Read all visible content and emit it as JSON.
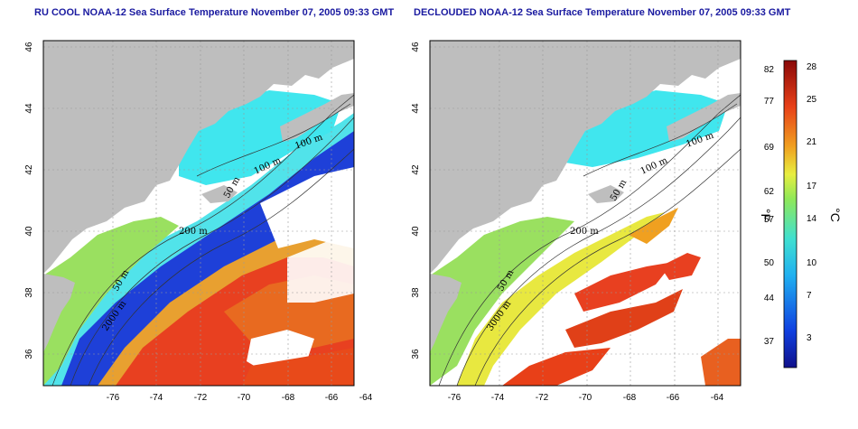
{
  "panels": [
    {
      "title": "RU COOL NOAA-12 Sea Surface Temperature November 07, 2005 09:33 GMT",
      "x_ticks": [
        "-76",
        "-74",
        "-72",
        "-70",
        "-68",
        "-66",
        "-64"
      ],
      "y_ticks": [
        "36",
        "38",
        "40",
        "42",
        "44",
        "46"
      ],
      "contour_labels": [
        "100 m",
        "100 m",
        "50 m",
        "200 m",
        "50 m",
        "2000 m"
      ]
    },
    {
      "title": "DECLOUDED NOAA-12 Sea Surface Temperature November 07, 2005 09:33 GMT",
      "x_ticks": [
        "-76",
        "-74",
        "-72",
        "-70",
        "-68",
        "-66",
        "-64"
      ],
      "y_ticks": [
        "36",
        "38",
        "40",
        "42",
        "44",
        "46"
      ],
      "contour_labels": [
        "100 m",
        "100 m",
        "50 m",
        "200 m",
        "50 m",
        "3000 m"
      ]
    }
  ],
  "colorbar": {
    "f_label": "°F",
    "c_label": "°C",
    "f_ticks": [
      "82",
      "77",
      "69",
      "62",
      "57",
      "50",
      "44",
      "37"
    ],
    "c_ticks": [
      "28",
      "25",
      "21",
      "17",
      "14",
      "10",
      "7",
      "3"
    ]
  },
  "colors": {
    "land": "#bebebe",
    "cloud": "#ffffff",
    "title": "#1a1aa0",
    "cold": "#1a2ad0",
    "cyan": "#3ee0e8",
    "green": "#8ee058",
    "yellow": "#e8ee40",
    "orange": "#f08a20",
    "red": "#e02818"
  }
}
